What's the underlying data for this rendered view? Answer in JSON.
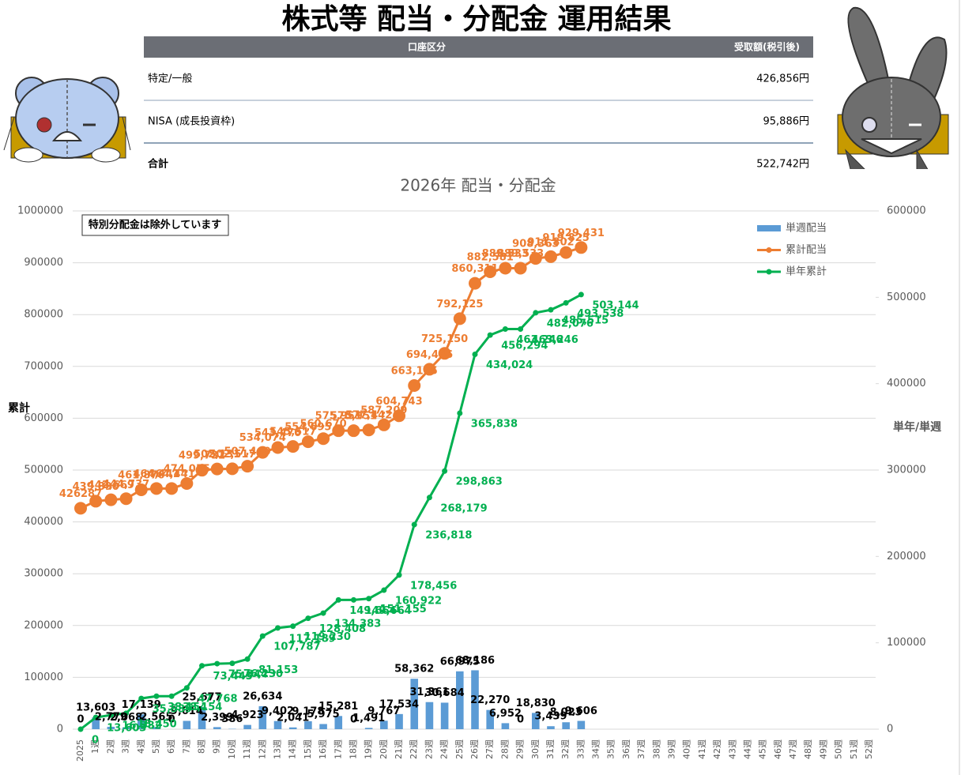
{
  "header": {
    "title": "株式等 配当・分配金 運用結果"
  },
  "table": {
    "columns": [
      "口座区分",
      "受取額(税引後)"
    ],
    "rows": [
      [
        "特定/一般",
        "426,856円"
      ],
      [
        "NISA (成長投資枠)",
        "95,886円"
      ],
      [
        "合計",
        "522,742円"
      ]
    ]
  },
  "chart_data": {
    "type": "bar",
    "title": "2026年 配当・分配金",
    "annotation": "特別分配金は除外しています",
    "y_label": "累計",
    "y2_label": "単年/単週",
    "categories": [
      "2025",
      "1週",
      "2週",
      "3週",
      "4週",
      "5週",
      "6週",
      "7週",
      "8週",
      "9週",
      "10週",
      "11週",
      "12週",
      "13週",
      "14週",
      "15週",
      "16週",
      "17週",
      "18週",
      "19週",
      "20週",
      "21週",
      "22週",
      "23週",
      "24週",
      "25週",
      "26週",
      "27週",
      "28週",
      "29週",
      "30週",
      "31週",
      "32週",
      "33週",
      "34週",
      "35週",
      "36週",
      "37週",
      "38週",
      "39週",
      "40週",
      "41週",
      "42週",
      "43週",
      "44週",
      "45週",
      "46週",
      "47週",
      "48週",
      "49週",
      "50週",
      "51週",
      "52週"
    ],
    "ylim": [
      0,
      1000000
    ],
    "yticks": [
      0,
      100000,
      200000,
      300000,
      400000,
      500000,
      600000,
      700000,
      800000,
      900000,
      1000000
    ],
    "y2lim": [
      0,
      600000
    ],
    "y2ticks": [
      0,
      100000,
      200000,
      300000,
      400000,
      500000,
      600000
    ],
    "grid": true,
    "legend": "top-right",
    "series": [
      {
        "name": "単週配当",
        "type": "bar",
        "axis": "y2",
        "color": "#5b9bd5",
        "values": [
          0,
          13603,
          2779,
          2068,
          17139,
          2565,
          0,
          9614,
          25677,
          2399,
          386,
          4923,
          26634,
          9402,
          2041,
          9178,
          5975,
          15281,
          0,
          1491,
          9767,
          17534,
          58362,
          31361,
          30684,
          66975,
          68186,
          22270,
          6952,
          0,
          18830,
          3439,
          8023,
          9606,
          null,
          null,
          null,
          null,
          null,
          null,
          null,
          null,
          null,
          null,
          null,
          null,
          null,
          null,
          null,
          null,
          null,
          null,
          null
        ],
        "value_labels": [
          "0",
          "13,603",
          "2,779",
          "2,068",
          "17,139",
          "2,565",
          "0",
          "9,614",
          "25,677",
          "2,399",
          "386",
          "4,923",
          "26,634",
          "9,402",
          "2,041",
          "9,178",
          "5,975",
          "15,281",
          "0",
          "1,491",
          "9,767",
          "17,534",
          "58,362",
          "31,361",
          "30,684",
          "66,975",
          "68,186",
          "22,270",
          "6,952",
          "0",
          "18,830",
          "3,439",
          "8,023",
          "9,606",
          null,
          null,
          null,
          null,
          null,
          null,
          null,
          null,
          null,
          null,
          null,
          null,
          null,
          null,
          null,
          null,
          null,
          null,
          null
        ]
      },
      {
        "name": "累計配当",
        "type": "line",
        "color": "#ed7d31",
        "values": [
          426287,
          439890,
          442669,
          444737,
          461876,
          464441,
          464441,
          474055,
          499732,
          502131,
          502517,
          507440,
          534074,
          543476,
          545517,
          554695,
          560670,
          575951,
          575951,
          577442,
          587209,
          604743,
          663105,
          694466,
          725150,
          792125,
          860311,
          882581,
          889533,
          889533,
          908363,
          911802,
          919825,
          929431,
          null,
          null,
          null,
          null,
          null,
          null,
          null,
          null,
          null,
          null,
          null,
          null,
          null,
          null,
          null,
          null,
          null,
          null,
          null
        ],
        "value_labels": [
          "426287",
          "439,890",
          "442,669",
          "444,737",
          "461,876",
          "464,441",
          "464,441",
          "474,055",
          "499,732",
          "502,131",
          "502,517",
          "507,440",
          "534,074",
          "543,476",
          "545,517",
          "554,695",
          "560,670",
          "575,951",
          "575,951",
          "577,442",
          "587,209",
          "604,743",
          "663,105",
          "694,466",
          "725,150",
          "792,125",
          "860,311",
          "882,581",
          "889,533",
          "889,533",
          "908,363",
          "911,802",
          "919,825",
          "929,431",
          null,
          null,
          null,
          null,
          null,
          null,
          null,
          null,
          null,
          null,
          null,
          null,
          null,
          null,
          null,
          null,
          null,
          null,
          null
        ]
      },
      {
        "name": "単年累計",
        "type": "line",
        "axis": "y2",
        "color": "#00b050",
        "values": [
          0,
          13603,
          16382,
          18450,
          35589,
          38154,
          38154,
          47768,
          73445,
          75844,
          76230,
          81153,
          107787,
          117189,
          119230,
          128408,
          134383,
          149664,
          149664,
          151155,
          160922,
          178456,
          236818,
          268179,
          298863,
          365838,
          434024,
          456294,
          463246,
          463246,
          482076,
          485515,
          493538,
          503144,
          null,
          null,
          null,
          null,
          null,
          null,
          null,
          null,
          null,
          null,
          null,
          null,
          null,
          null,
          null,
          null,
          null,
          null,
          null
        ],
        "value_labels": [
          "0",
          "13,603",
          "16,382",
          "18,450",
          "35,589",
          "38,154",
          "38,154",
          "47,768",
          "73,445",
          "75,844",
          "76,230",
          "81,153",
          "107,787",
          "117,189",
          "119,230",
          "128,408",
          "134,383",
          "149,664",
          "149,664",
          "151,155",
          "160,922",
          "178,456",
          "236,818",
          "268,179",
          "298,863",
          "365,838",
          "434,024",
          "456,294",
          "463,246",
          "463,246",
          "482,076",
          "485,515",
          "493,538",
          "503,144",
          null,
          null,
          null,
          null,
          null,
          null,
          null,
          null,
          null,
          null,
          null,
          null,
          null,
          null,
          null,
          null,
          null,
          null,
          null
        ]
      }
    ]
  }
}
